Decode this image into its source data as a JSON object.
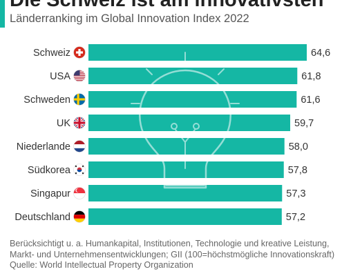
{
  "header": {
    "title": "Die Schweiz ist am innovativsten",
    "subtitle": "Länderranking im Global Innovation Index 2022"
  },
  "chart_data": {
    "type": "bar",
    "orientation": "horizontal",
    "categories": [
      "Schweiz",
      "USA",
      "Schweden",
      "UK",
      "Niederlande",
      "Südkorea",
      "Singapur",
      "Deutschland"
    ],
    "values": [
      64.6,
      61.8,
      61.6,
      59.7,
      58.0,
      57.8,
      57.3,
      57.2
    ],
    "value_labels": [
      "64,6",
      "61,8",
      "61,6",
      "59,7",
      "58,0",
      "57,8",
      "57,3",
      "57,2"
    ],
    "flag_icons": [
      "swiss-flag-icon",
      "us-flag-icon",
      "swedish-flag-icon",
      "uk-flag-icon",
      "dutch-flag-icon",
      "south-korean-flag-icon",
      "singapore-flag-icon",
      "german-flag-icon"
    ],
    "bar_color": "#15b7a4",
    "grid": false,
    "legend": "none"
  },
  "footnote": {
    "line1": "Berücksichtigt u. a. Humankapital, Institutionen, Technologie und kreative Leistung,",
    "line2": "Markt- und Unternehmensentwicklungen; GII (100=höchstmögliche Innovationskraft)",
    "source": "Quelle: World Intellectual Property Organization"
  },
  "background_icon": "lightbulb-icon"
}
